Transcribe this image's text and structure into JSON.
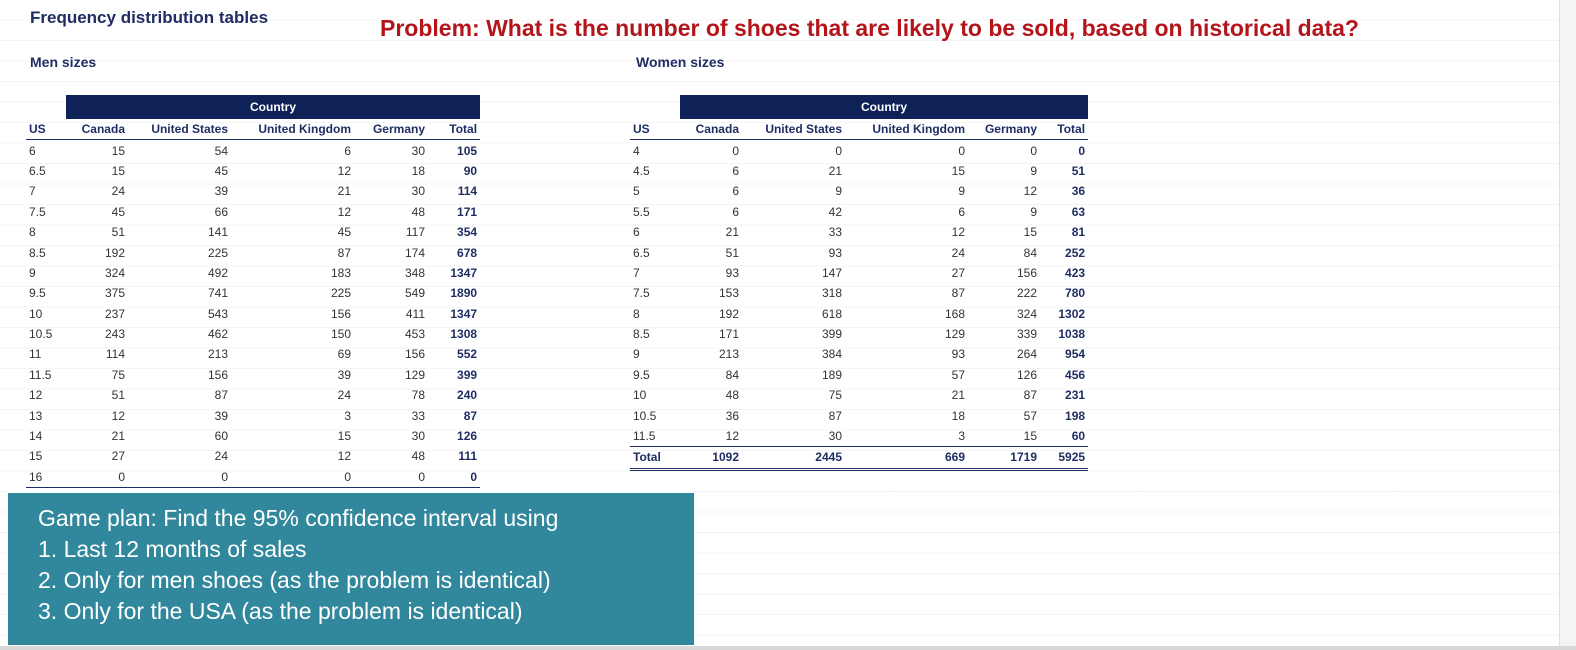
{
  "sheet_title": "Frequency distribution tables",
  "problem": "Problem: What is the number of shoes that are likely to be sold, based on historical data?",
  "men": {
    "label": "Men sizes",
    "band": "Country",
    "headers": [
      "US",
      "Canada",
      "United States",
      "United Kingdom",
      "Germany",
      "Total"
    ],
    "rows": [
      [
        "6",
        "15",
        "54",
        "6",
        "30",
        "105"
      ],
      [
        "6.5",
        "15",
        "45",
        "12",
        "18",
        "90"
      ],
      [
        "7",
        "24",
        "39",
        "21",
        "30",
        "114"
      ],
      [
        "7.5",
        "45",
        "66",
        "12",
        "48",
        "171"
      ],
      [
        "8",
        "51",
        "141",
        "45",
        "117",
        "354"
      ],
      [
        "8.5",
        "192",
        "225",
        "87",
        "174",
        "678"
      ],
      [
        "9",
        "324",
        "492",
        "183",
        "348",
        "1347"
      ],
      [
        "9.5",
        "375",
        "741",
        "225",
        "549",
        "1890"
      ],
      [
        "10",
        "237",
        "543",
        "156",
        "411",
        "1347"
      ],
      [
        "10.5",
        "243",
        "462",
        "150",
        "453",
        "1308"
      ],
      [
        "11",
        "114",
        "213",
        "69",
        "156",
        "552"
      ],
      [
        "11.5",
        "75",
        "156",
        "39",
        "129",
        "399"
      ],
      [
        "12",
        "51",
        "87",
        "24",
        "78",
        "240"
      ],
      [
        "13",
        "12",
        "39",
        "3",
        "33",
        "87"
      ],
      [
        "14",
        "21",
        "60",
        "15",
        "30",
        "126"
      ],
      [
        "15",
        "27",
        "24",
        "12",
        "48",
        "111"
      ],
      [
        "16",
        "0",
        "0",
        "0",
        "0",
        "0"
      ]
    ]
  },
  "women": {
    "label": "Women sizes",
    "band": "Country",
    "headers": [
      "US",
      "Canada",
      "United States",
      "United Kingdom",
      "Germany",
      "Total"
    ],
    "rows": [
      [
        "4",
        "0",
        "0",
        "0",
        "0",
        "0"
      ],
      [
        "4.5",
        "6",
        "21",
        "15",
        "9",
        "51"
      ],
      [
        "5",
        "6",
        "9",
        "9",
        "12",
        "36"
      ],
      [
        "5.5",
        "6",
        "42",
        "6",
        "9",
        "63"
      ],
      [
        "6",
        "21",
        "33",
        "12",
        "15",
        "81"
      ],
      [
        "6.5",
        "51",
        "93",
        "24",
        "84",
        "252"
      ],
      [
        "7",
        "93",
        "147",
        "27",
        "156",
        "423"
      ],
      [
        "7.5",
        "153",
        "318",
        "87",
        "222",
        "780"
      ],
      [
        "8",
        "192",
        "618",
        "168",
        "324",
        "1302"
      ],
      [
        "8.5",
        "171",
        "399",
        "129",
        "339",
        "1038"
      ],
      [
        "9",
        "213",
        "384",
        "93",
        "264",
        "954"
      ],
      [
        "9.5",
        "84",
        "189",
        "57",
        "126",
        "456"
      ],
      [
        "10",
        "48",
        "75",
        "21",
        "87",
        "231"
      ],
      [
        "10.5",
        "36",
        "87",
        "18",
        "57",
        "198"
      ],
      [
        "11.5",
        "12",
        "30",
        "3",
        "15",
        "60"
      ]
    ],
    "total_row": [
      "Total",
      "1092",
      "2445",
      "669",
      "1719",
      "5925"
    ]
  },
  "gameplan": [
    "Game plan: Find the 95% confidence interval using",
    "1. Last 12 months of sales",
    "2. Only for men shoes (as the problem is identical)",
    "3. Only for the USA (as the problem is identical)"
  ],
  "colors": {
    "title_navy": "#1f2d63",
    "band_navy": "#0f2258",
    "problem_red": "#b3151b",
    "gameplan_teal": "#31879b"
  }
}
